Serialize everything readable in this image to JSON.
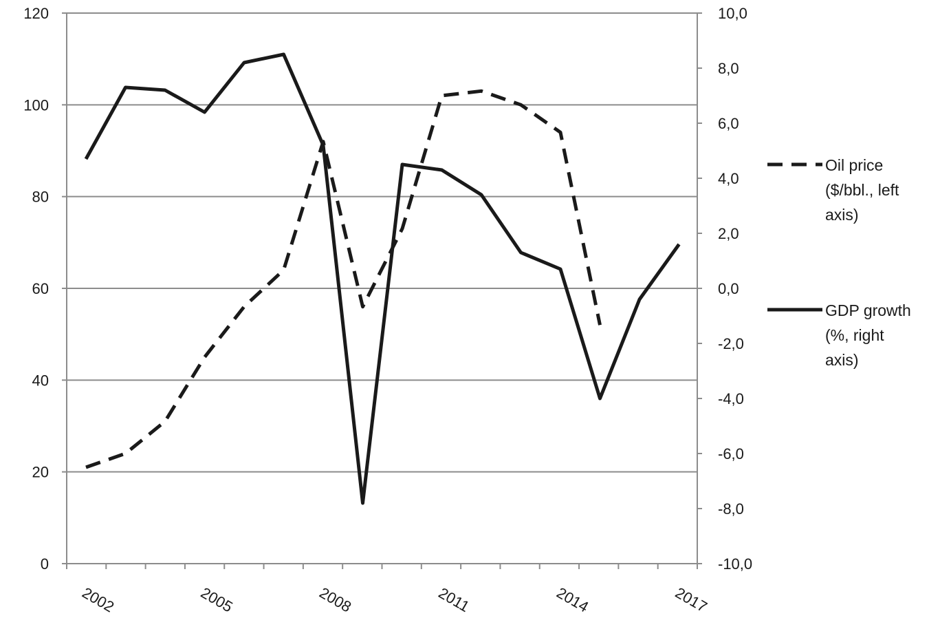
{
  "chart_data": {
    "type": "line",
    "x": [
      "2002",
      "2003",
      "2004",
      "2005",
      "2006",
      "2007",
      "2008",
      "2009",
      "2010",
      "2011",
      "2012",
      "2013",
      "2014",
      "2015",
      "2016",
      "2017"
    ],
    "x_tick_labels": [
      "2002",
      "2005",
      "2008",
      "2011",
      "2014",
      "2017"
    ],
    "y_left": {
      "ylim": [
        0,
        120
      ],
      "ticks": [
        0,
        20,
        40,
        60,
        80,
        100,
        120
      ],
      "tick_labels": [
        "0",
        "20",
        "40",
        "60",
        "80",
        "100",
        "120"
      ]
    },
    "y_right": {
      "ylim": [
        -10,
        10
      ],
      "ticks": [
        -10,
        -8,
        -6,
        -4,
        -2,
        0,
        2,
        4,
        6,
        8,
        10
      ],
      "tick_labels": [
        "-10,0",
        "-8,0",
        "-6,0",
        "-4,0",
        "-2,0",
        "0,0",
        "2,0",
        "4,0",
        "6,0",
        "8,0",
        "10,0"
      ]
    },
    "series": [
      {
        "name": [
          "Oil price",
          "($/bbl., left",
          "axis)"
        ],
        "axis": "left",
        "style": "dashed",
        "x": [
          "2002",
          "2003",
          "2004",
          "2005",
          "2006",
          "2007",
          "2008",
          "2009",
          "2010",
          "2011",
          "2012",
          "2013",
          "2014",
          "2015"
        ],
        "values": [
          21,
          24,
          31,
          45,
          56,
          64,
          92,
          56,
          73,
          102,
          103,
          100,
          94,
          52
        ]
      },
      {
        "name": [
          "GDP growth",
          "(%, right",
          "axis)"
        ],
        "axis": "right",
        "style": "solid",
        "x": [
          "2002",
          "2003",
          "2004",
          "2005",
          "2006",
          "2007",
          "2008",
          "2009",
          "2010",
          "2011",
          "2012",
          "2013",
          "2014",
          "2015",
          "2016",
          "2017"
        ],
        "values": [
          4.7,
          7.3,
          7.2,
          6.4,
          8.2,
          8.5,
          5.2,
          -7.8,
          4.5,
          4.3,
          3.4,
          1.3,
          0.7,
          -4.0,
          -0.4,
          1.6
        ]
      }
    ],
    "grid": "horizontal",
    "legend_position": "right"
  },
  "colors": {
    "line": "#1a1a1a",
    "grid": "#8c8c8c",
    "axis": "#8c8c8c",
    "text": "#1a1a1a",
    "background": "#ffffff"
  }
}
